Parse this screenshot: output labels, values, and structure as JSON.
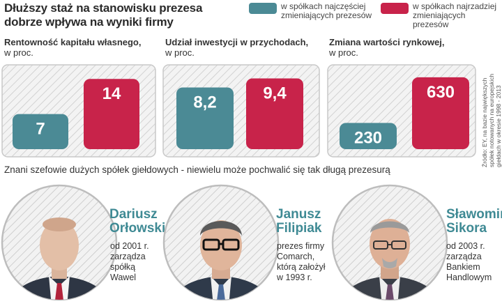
{
  "header": {
    "title_line1": "Dłuższy staż na stanowisku prezesa",
    "title_line2": "dobrze wpływa na wyniki firmy"
  },
  "legend": [
    {
      "line1": "w spółkach najczęściej",
      "line2": "zmieniających prezesów",
      "color": "#4b8a95"
    },
    {
      "line1": "w spółkach najrzadziej",
      "line2": "zmieniających prezesów",
      "color": "#c8234a"
    }
  ],
  "colors": {
    "teal": "#4b8a95",
    "red": "#c8234a",
    "name": "#3f8a94"
  },
  "chart_data": [
    {
      "type": "bar",
      "title": "Rentowność kapitału własnego,",
      "unit": "w proc.",
      "categories": [
        "w spółkach najczęściej zmieniających prezesów",
        "w spółkach najrzadziej zmieniających prezesów"
      ],
      "values": [
        7,
        14
      ],
      "labels": [
        "7",
        "14"
      ],
      "ylim": [
        0,
        15
      ]
    },
    {
      "type": "bar",
      "title": "Udział inwestycji w przychodach,",
      "unit": "w proc.",
      "categories": [
        "w spółkach najczęściej zmieniających prezesów",
        "w spółkach najrzadziej zmieniających prezesów"
      ],
      "values": [
        8.2,
        9.4
      ],
      "labels": [
        "8,2",
        "9,4"
      ],
      "ylim": [
        0,
        10
      ]
    },
    {
      "type": "bar",
      "title": "Zmiana wartości rynkowej,",
      "unit": "w proc.",
      "categories": [
        "w spółkach najczęściej zmieniających prezesów",
        "w spółkach najrzadziej zmieniających prezesów"
      ],
      "values": [
        230,
        630
      ],
      "labels": [
        "230",
        "630"
      ],
      "ylim": [
        0,
        660
      ]
    }
  ],
  "source": {
    "line1": "Źródło: EY, na bazie największych",
    "line2": "spółek notowanych na europejskich",
    "line3": "giełdach w okresie 1998 - 2013"
  },
  "subtitle": "Znani szefowie dużych spółek giełdowych - niewielu może pochwalić się tak długą prezesurą",
  "people": [
    {
      "first": "Dariusz",
      "last": "Orłowski",
      "desc": [
        "od 2001 r.",
        "zarządza",
        "spółką",
        "Wawel"
      ],
      "tie": "#b2233b"
    },
    {
      "first": "Janusz",
      "last": "Filipiak",
      "desc": [
        "prezes firmy",
        "Comarch,",
        "którą założył",
        "w 1993 r."
      ],
      "tie": "#4a6a9a"
    },
    {
      "first": "Sławomir",
      "last": "Sikora",
      "desc": [
        "od 2003 r.",
        "zarządza",
        "Bankiem",
        "Handlowym"
      ],
      "tie": "#6b4a6a"
    }
  ]
}
